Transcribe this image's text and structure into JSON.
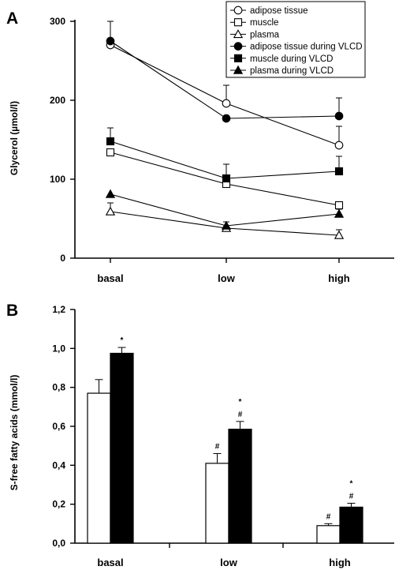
{
  "chart_data": [
    {
      "panel": "A",
      "type": "line",
      "ylabel": "Glycerol (µmol/l)",
      "categories": [
        "basal",
        "low",
        "high"
      ],
      "yticks": [
        "0",
        "100",
        "200",
        "300"
      ],
      "ylim": [
        0,
        300
      ],
      "legend_position": "top-right",
      "series": [
        {
          "name": "adipose tissue",
          "marker": "circle-open",
          "values": [
            270,
            196,
            143
          ],
          "errors": [
            0,
            23,
            24
          ]
        },
        {
          "name": "muscle",
          "marker": "square-open",
          "values": [
            134,
            94,
            67
          ],
          "errors": [
            0,
            0,
            0
          ]
        },
        {
          "name": "plasma",
          "marker": "triangle-open",
          "values": [
            59,
            38,
            29
          ],
          "errors": [
            11,
            0,
            7
          ]
        },
        {
          "name": "adipose tissue during VLCD",
          "marker": "circle-filled",
          "values": [
            275,
            177,
            180
          ],
          "errors": [
            25,
            0,
            23
          ]
        },
        {
          "name": "muscle during VLCD",
          "marker": "square-filled",
          "values": [
            148,
            101,
            110
          ],
          "errors": [
            17,
            18,
            19
          ]
        },
        {
          "name": "plasma during VLCD",
          "marker": "triangle-filled",
          "values": [
            81,
            41,
            56
          ],
          "errors": [
            0,
            5,
            6
          ]
        }
      ]
    },
    {
      "panel": "B",
      "type": "bar",
      "ylabel": "S-free fatty acids (mmol/l)",
      "categories": [
        "basal",
        "low",
        "high"
      ],
      "yticks": [
        "0,0",
        "0,2",
        "0,4",
        "0,6",
        "0,8",
        "1,0",
        "1,2"
      ],
      "ylim": [
        0,
        1.2
      ],
      "series": [
        {
          "fill": "white",
          "values": [
            0.77,
            0.41,
            0.09
          ],
          "errors": [
            0.07,
            0.05,
            0.01
          ],
          "annotations": [
            "",
            "#",
            "#"
          ]
        },
        {
          "fill": "black",
          "values": [
            0.975,
            0.585,
            0.185
          ],
          "errors": [
            0.03,
            0.04,
            0.02
          ],
          "annotations": [
            "*",
            "*\n#",
            "*\n#"
          ]
        }
      ]
    }
  ]
}
